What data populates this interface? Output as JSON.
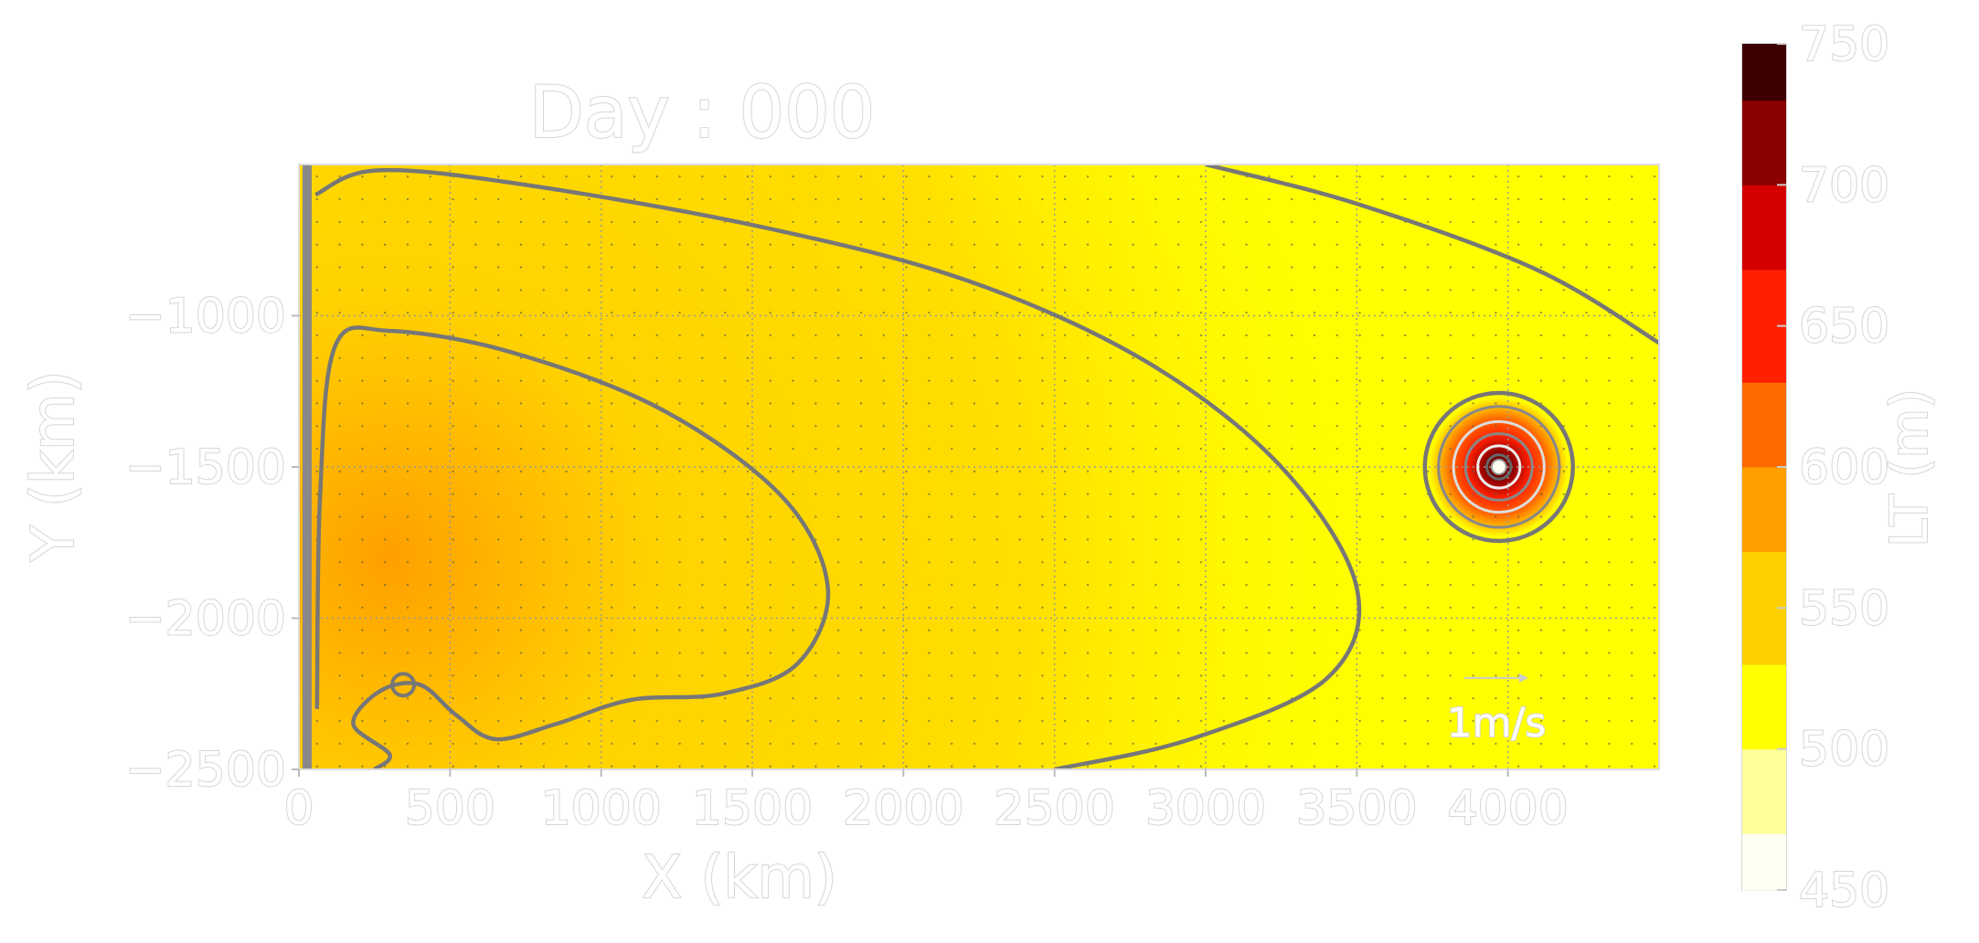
{
  "chart_data": {
    "type": "heatmap",
    "title": "Day : 000",
    "xlabel": "X (km)",
    "ylabel": "Y (km)",
    "xlim": [
      0,
      4500
    ],
    "ylim": [
      -2500,
      -500
    ],
    "x_ticks": [
      0,
      500,
      1000,
      1500,
      2000,
      2500,
      3000,
      3500,
      4000
    ],
    "x_tick_labels": [
      "0",
      "500",
      "1000",
      "1500",
      "2000",
      "2500",
      "3000",
      "3500",
      "4000"
    ],
    "y_ticks": [
      -1000,
      -1500,
      -2000,
      -2500
    ],
    "y_tick_labels": [
      "−1000",
      "−1500",
      "−2000",
      "−2500"
    ],
    "grid": true,
    "field": "LT",
    "colorbar": {
      "label": "LT (m)",
      "min": 450,
      "max": 750,
      "ticks": [
        450,
        500,
        550,
        600,
        650,
        700,
        750
      ],
      "tick_labels": [
        "450",
        "500",
        "550",
        "600",
        "650",
        "700",
        "750"
      ],
      "colors": [
        "#fffef2",
        "#ffff9a",
        "#ffff00",
        "#ffd000",
        "#ff9f00",
        "#ff6a00",
        "#ff2000",
        "#d40000",
        "#8b0000",
        "#3d0000"
      ]
    },
    "field_features": [
      {
        "type": "western-maximum",
        "x": 300,
        "y": -1800,
        "value": 580
      },
      {
        "type": "background",
        "value": 500
      },
      {
        "type": "eddy",
        "x": 3970,
        "y": -1500,
        "radius_km": 230,
        "core_value": 750
      }
    ],
    "contours": [
      {
        "name": "outer",
        "points": [
          [
            55,
            -600
          ],
          [
            250,
            -520
          ],
          [
            700,
            -560
          ],
          [
            1500,
            -700
          ],
          [
            2200,
            -880
          ],
          [
            2800,
            -1150
          ],
          [
            3250,
            -1500
          ],
          [
            3500,
            -1900
          ],
          [
            3400,
            -2200
          ],
          [
            2950,
            -2400
          ],
          [
            2500,
            -2500
          ]
        ]
      },
      {
        "name": "inner",
        "points": [
          [
            60,
            -2300
          ],
          [
            70,
            -1600
          ],
          [
            120,
            -1100
          ],
          [
            300,
            -1050
          ],
          [
            700,
            -1120
          ],
          [
            1200,
            -1310
          ],
          [
            1600,
            -1600
          ],
          [
            1750,
            -1900
          ],
          [
            1650,
            -2150
          ],
          [
            1400,
            -2250
          ],
          [
            1100,
            -2270
          ],
          [
            850,
            -2350
          ],
          [
            650,
            -2400
          ],
          [
            520,
            -2320
          ],
          [
            400,
            -2220
          ],
          [
            270,
            -2240
          ],
          [
            180,
            -2350
          ],
          [
            300,
            -2450
          ],
          [
            250,
            -2500
          ]
        ]
      },
      {
        "name": "north-east",
        "points": [
          [
            3000,
            -500
          ],
          [
            3500,
            -630
          ],
          [
            4100,
            -850
          ],
          [
            4500,
            -1090
          ]
        ]
      }
    ],
    "eddy_rings_km": [
      245,
      200,
      150,
      110,
      70,
      40
    ],
    "small_eddy": {
      "x": 345,
      "y": -2220
    },
    "scale_arrow_label": "1m/s"
  }
}
